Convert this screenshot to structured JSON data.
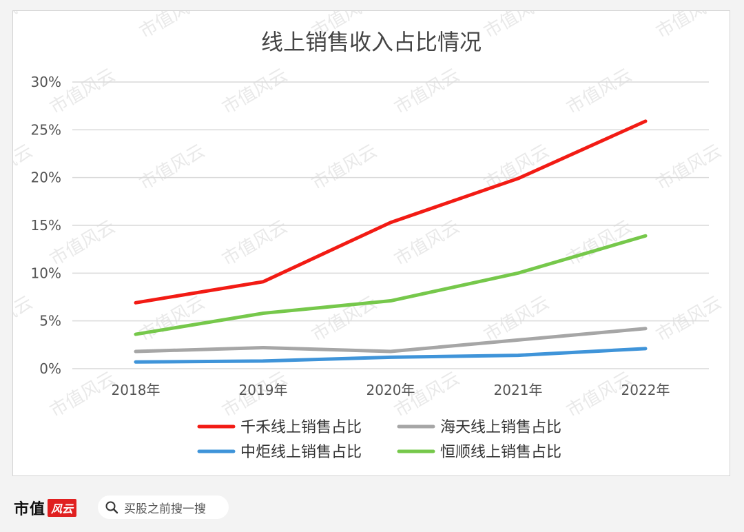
{
  "chart_data": {
    "type": "line",
    "title": "线上销售收入占比情况",
    "categories": [
      "2018年",
      "2019年",
      "2020年",
      "2021年",
      "2022年"
    ],
    "ylim": [
      0,
      30
    ],
    "yticks": [
      "0%",
      "5%",
      "10%",
      "15%",
      "20%",
      "25%",
      "30%"
    ],
    "grid": true,
    "legend_position": "bottom",
    "series": [
      {
        "name": "千禾线上销售占比",
        "color": "#f21b14",
        "values": [
          6.9,
          9.1,
          15.3,
          19.9,
          25.9
        ]
      },
      {
        "name": "海天线上销售占比",
        "color": "#a6a6a6",
        "values": [
          1.8,
          2.2,
          1.8,
          3.0,
          4.2
        ]
      },
      {
        "name": "中炬线上销售占比",
        "color": "#3f94d9",
        "values": [
          0.7,
          0.8,
          1.2,
          1.4,
          2.1
        ]
      },
      {
        "name": "恒顺线上销售占比",
        "color": "#76c84b",
        "values": [
          3.6,
          5.8,
          7.1,
          10.0,
          13.9
        ]
      }
    ],
    "watermark": "市值风云"
  },
  "footer": {
    "brand": "市值",
    "brand_mark": "风云",
    "search_icon": "search-icon",
    "search_text": "买股之前搜一搜"
  }
}
